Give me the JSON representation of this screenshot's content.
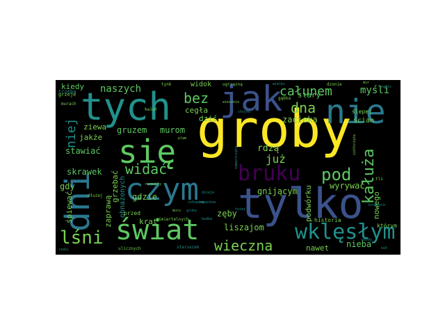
{
  "colors": {
    "background": "#000000",
    "page": "#ffffff",
    "yellow": "#fde725",
    "green": "#5ec962",
    "teal": "#21918c",
    "blue": "#3b528b",
    "purple": "#440154",
    "lightgreen": "#7ad151",
    "cyan": "#2a788e"
  },
  "words": {
    "groby": "groby",
    "tylko": "tylko",
    "czym": "czym",
    "tych": "tych",
    "jak": "jak",
    "nie": "nie",
    "sie": "się",
    "dni": "dni",
    "swiat": "świat",
    "lsni": "lśni",
    "wklęslym": "wklęsłym",
    "bruku": "bruku",
    "kaluza": "kałuża",
    "pod": "pod",
    "widac": "widać",
    "wieczna": "wieczna",
    "calunem": "całunem",
    "bez": "bez",
    "dna": "dna",
    "naszych": "naszych",
    "mysli": "myśli",
    "niej": "niej",
    "juz": "już",
    "gruzem": "gruzem",
    "murom": "murom",
    "rdza": "rdzą",
    "zacieka": "zacieka",
    "stawiac": "stawiać",
    "skrawek": "skrawek",
    "gdy": "gdy",
    "gdzie": "gdzie",
    "krat": "krat",
    "zeby": "zęby",
    "liszajom": "liszajom",
    "gnijacym": "gnijącym",
    "wyrywac": "wyrywać",
    "nowego": "nowego",
    "podworku": "podwórku",
    "nawet": "nawet",
    "nieba": "nieba",
    "spiewac": "śpiewać",
    "zaprawa": "zaprawą",
    "grzebac": "grzebać",
    "obnazonych": "obnażonych",
    "kiedy": "kiedy",
    "widok": "widok",
    "cegla": "cegła",
    "dzis": "dziś",
    "ziewa": "ziewa",
    "jakze": "jakże",
    "stary": "stary",
    "scian": "ścian",
    "slepej": "ślepej",
    "ktorym": "którym",
    "historia": "historia",
    "przed": "przed",
    "dzieje": "dzieje",
    "muru": "muru",
    "plam": "plam",
    "trzeba": "trzeba",
    "grzeje": "grzeje",
    "murach": "murach",
    "tynk": "tynk",
    "ugrzezna": "ugrzęzną",
    "wielki": "wielki",
    "dzonie": "dzonie",
    "mur": "mur",
    "napis": "napis",
    "kwiat": "kwiat",
    "gabka": "gąbka",
    "czlowiek": "człowiek",
    "wiecznie": "wiecznie",
    "slojku": "słojku",
    "smiertelnych": "śmiertelnych",
    "zamarzniety": "zamarznięty",
    "ulicznych": "ulicznych",
    "staruszek": "staruszek",
    "zapachow": "zapachów",
    "tutaj": "tutaj",
    "kazdy": "każdy",
    "tli": "tli",
    "rzeki": "rzeki",
    "kol": "kół",
    "brudnych": "brudnych",
    "budka": "budka",
    "dluzej": "dłużej",
    "rozmokly": "rozmokły",
    "gruby": "gruby",
    "zzolkniete": "zżółknięte"
  }
}
